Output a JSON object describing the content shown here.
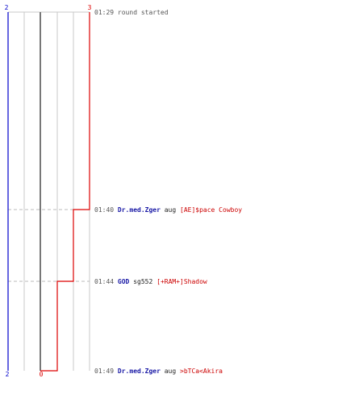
{
  "timeline": {
    "team_blue_start_count": "2",
    "team_blue_end_count": "2",
    "team_red_start_count": "3",
    "team_red_end_count": "0",
    "colors": {
      "blue_team": "#0000cc",
      "red_team": "#dd0000",
      "grid": "#c8c8c8",
      "zero_line": "#777777",
      "dashed_marker": "#bbbbbb"
    }
  },
  "events": [
    {
      "time": "01:29",
      "text": "round started"
    },
    {
      "time": "01:40",
      "killer": "Dr.med.Zger",
      "weapon": "aug",
      "victim": "[AE]$pace Cowboy"
    },
    {
      "time": "01:44",
      "killer": "GOD",
      "weapon": "sg552",
      "victim": "[+RAM+]Shadow"
    },
    {
      "time": "01:49",
      "killer": "Dr.med.Zger",
      "weapon": "aug",
      "victim": ">bTCa<Akira"
    }
  ]
}
